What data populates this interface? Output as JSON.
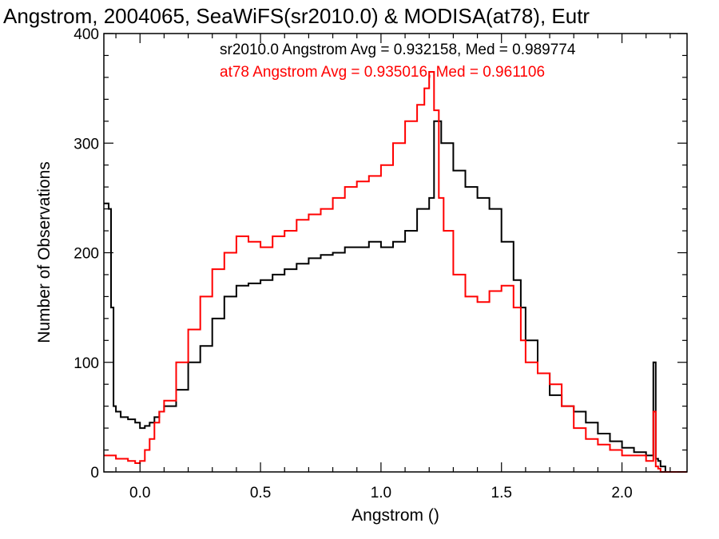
{
  "chart_data": {
    "type": "line",
    "title": "Angstrom, 2004065, SeaWiFS(sr2010.0) & MODISA(at78), Eutr",
    "xlabel": "Angstrom ()",
    "ylabel": "Number of Observations",
    "xlim": [
      -0.15,
      2.27
    ],
    "ylim": [
      0,
      400
    ],
    "x_ticks": [
      0.0,
      0.5,
      1.0,
      1.5,
      2.0
    ],
    "x_tick_labels": [
      "0.0",
      "0.5",
      "1.0",
      "1.5",
      "2.0"
    ],
    "y_ticks": [
      0,
      100,
      200,
      300,
      400
    ],
    "y_tick_labels": [
      "0",
      "100",
      "200",
      "300",
      "400"
    ],
    "grid": false,
    "step": true,
    "annotations": [
      {
        "text": "sr2010.0 Angstrom Avg = 0.932158, Med = 0.989774",
        "color": "#000000"
      },
      {
        "text": "at78 Angstrom Avg = 0.935016, Med = 0.961106",
        "color": "#ff0000"
      }
    ],
    "series": [
      {
        "color": "#000000",
        "x": [
          -0.15,
          -0.13,
          -0.12,
          -0.11,
          -0.1,
          -0.08,
          -0.05,
          -0.02,
          0.0,
          0.02,
          0.04,
          0.06,
          0.08,
          0.1,
          0.15,
          0.2,
          0.25,
          0.3,
          0.35,
          0.4,
          0.45,
          0.5,
          0.55,
          0.6,
          0.65,
          0.7,
          0.75,
          0.8,
          0.85,
          0.9,
          0.95,
          1.0,
          1.05,
          1.1,
          1.15,
          1.2,
          1.22,
          1.25,
          1.3,
          1.35,
          1.4,
          1.45,
          1.5,
          1.55,
          1.58,
          1.6,
          1.65,
          1.7,
          1.75,
          1.8,
          1.85,
          1.9,
          1.95,
          2.0,
          2.05,
          2.1,
          2.13,
          2.14,
          2.15,
          2.16,
          2.18,
          2.27
        ],
        "values": [
          245,
          240,
          150,
          60,
          55,
          50,
          48,
          45,
          40,
          42,
          45,
          50,
          55,
          60,
          75,
          100,
          115,
          140,
          160,
          170,
          172,
          175,
          180,
          185,
          190,
          195,
          198,
          200,
          205,
          205,
          210,
          205,
          210,
          220,
          240,
          250,
          320,
          300,
          275,
          260,
          250,
          240,
          210,
          175,
          150,
          120,
          90,
          70,
          60,
          55,
          45,
          35,
          28,
          22,
          18,
          15,
          100,
          12,
          10,
          5,
          0,
          0
        ]
      },
      {
        "color": "#ff0000",
        "x": [
          -0.15,
          -0.1,
          -0.05,
          -0.02,
          0.0,
          0.02,
          0.04,
          0.06,
          0.08,
          0.1,
          0.15,
          0.2,
          0.25,
          0.3,
          0.35,
          0.4,
          0.45,
          0.5,
          0.55,
          0.6,
          0.65,
          0.7,
          0.75,
          0.8,
          0.85,
          0.9,
          0.95,
          1.0,
          1.05,
          1.1,
          1.15,
          1.18,
          1.2,
          1.22,
          1.24,
          1.26,
          1.3,
          1.35,
          1.4,
          1.45,
          1.5,
          1.55,
          1.58,
          1.6,
          1.65,
          1.7,
          1.75,
          1.8,
          1.85,
          1.9,
          1.95,
          2.0,
          2.05,
          2.1,
          2.13,
          2.14,
          2.15,
          2.16,
          2.18,
          2.27
        ],
        "values": [
          15,
          12,
          10,
          8,
          10,
          20,
          30,
          45,
          55,
          65,
          100,
          130,
          160,
          185,
          200,
          215,
          210,
          205,
          215,
          220,
          230,
          235,
          240,
          250,
          260,
          265,
          270,
          280,
          300,
          320,
          335,
          350,
          365,
          330,
          250,
          220,
          180,
          160,
          155,
          165,
          170,
          150,
          120,
          100,
          90,
          80,
          60,
          40,
          30,
          25,
          20,
          15,
          15,
          10,
          55,
          5,
          3,
          0,
          0,
          0
        ]
      }
    ]
  }
}
